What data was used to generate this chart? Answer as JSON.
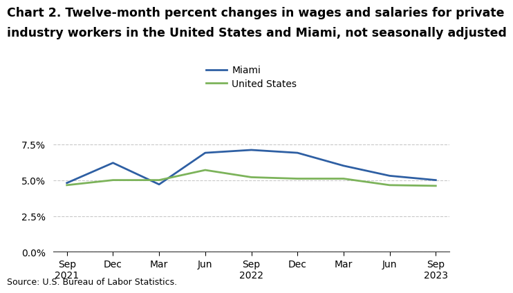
{
  "title_line1": "Chart 2. Twelve-month percent changes in wages and salaries for private",
  "title_line2": "industry workers in the United States and Miami, not seasonally adjusted",
  "source": "Source: U.S. Bureau of Labor Statistics.",
  "x_labels": [
    "Sep\n2021",
    "Dec",
    "Mar",
    "Jun",
    "Sep\n2022",
    "Dec",
    "Mar",
    "Jun",
    "Sep\n2023"
  ],
  "miami_values": [
    4.8,
    6.2,
    4.7,
    6.9,
    7.1,
    6.9,
    6.0,
    5.3,
    5.0
  ],
  "us_values": [
    4.65,
    5.0,
    5.0,
    5.7,
    5.2,
    5.1,
    5.1,
    4.65,
    4.6
  ],
  "miami_color": "#2E5FA3",
  "us_color": "#7CB35A",
  "ylim": [
    0,
    8.75
  ],
  "yticks": [
    0.0,
    2.5,
    5.0,
    7.5
  ],
  "ytick_labels": [
    "0.0%",
    "2.5%",
    "5.0%",
    "7.5%"
  ],
  "grid_color": "#c8c8c8",
  "legend_labels": [
    "Miami",
    "United States"
  ],
  "title_fontsize": 12.5,
  "axis_fontsize": 10,
  "legend_fontsize": 10,
  "source_fontsize": 9,
  "line_width": 2.0
}
